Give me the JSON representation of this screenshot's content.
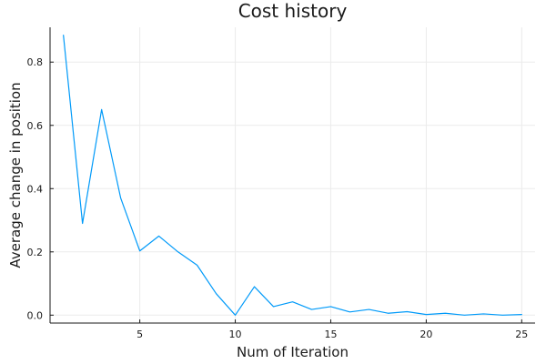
{
  "chart_data": {
    "type": "line",
    "title": "Cost history",
    "xlabel": "Num of Iteration",
    "ylabel": "Average change in position",
    "xlim": [
      0.3,
      25.7
    ],
    "ylim": [
      -0.025,
      0.91
    ],
    "x_ticks": [
      5,
      10,
      15,
      20,
      25
    ],
    "x_tick_labels": [
      "5",
      "10",
      "15",
      "20",
      "25"
    ],
    "y_ticks": [
      0.0,
      0.2,
      0.4,
      0.6,
      0.8
    ],
    "y_tick_labels": [
      "0.0",
      "0.2",
      "0.4",
      "0.6",
      "0.8"
    ],
    "grid": true,
    "legend": "none",
    "series": [
      {
        "color": "#009af9",
        "x": [
          1,
          2,
          3,
          4,
          5,
          6,
          7,
          8,
          9,
          10,
          11,
          12,
          13,
          14,
          15,
          16,
          17,
          18,
          19,
          20,
          21,
          22,
          23,
          24,
          25
        ],
        "y": [
          0.885,
          0.29,
          0.65,
          0.37,
          0.203,
          0.25,
          0.2,
          0.158,
          0.068,
          0.0,
          0.09,
          0.027,
          0.042,
          0.018,
          0.027,
          0.01,
          0.018,
          0.006,
          0.011,
          0.002,
          0.006,
          0.0,
          0.004,
          0.0,
          0.002
        ]
      }
    ]
  }
}
